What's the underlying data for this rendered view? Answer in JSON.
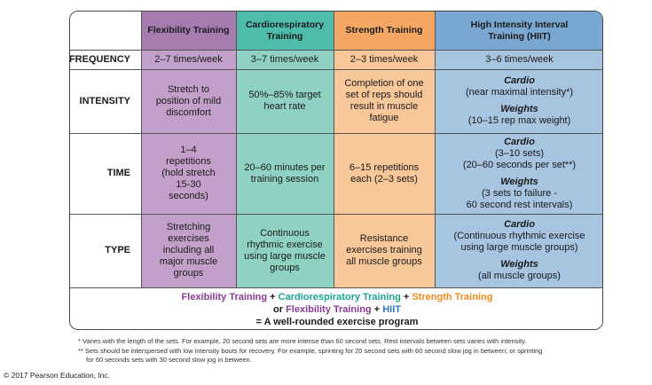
{
  "headers": [
    "Flexibility Training",
    "Cardiorespiratory Training",
    "Strength Training",
    "High Intensity Interval Training (HIIT)"
  ],
  "rows": {
    "frequency": {
      "label": "FREQUENCY",
      "flex": "2–7 times/week",
      "cardio": "3–7 times/week",
      "strength": "2–3 times/week",
      "hiit": "3–6 times/week"
    },
    "intensity": {
      "label": "INTENSITY",
      "flex": "Stretch to position of mild discomfort",
      "cardio": "50%–85% target heart rate",
      "strength": "Completion of one set of reps should result in muscle fatigue",
      "hiit_cardio_title": "Cardio",
      "hiit_cardio_text": "(near maximal intensity*)",
      "hiit_weights_title": "Weights",
      "hiit_weights_text": "(10–15 rep max weight)"
    },
    "time": {
      "label": "TIME",
      "flex": "1–4 repetitions (hold stretch 15-30 seconds)",
      "cardio": "20–60 minutes per training session",
      "strength": "6–15 repetitions each (2–3 sets)",
      "hiit_cardio_title": "Cardio",
      "hiit_cardio_line1": "(3–10 sets)",
      "hiit_cardio_line2": "(20–60 seconds per set**)",
      "hiit_weights_title": "Weights",
      "hiit_weights_line1": "(3 sets to failure -",
      "hiit_weights_line2": "60 second rest intervals)"
    },
    "type": {
      "label": "TYPE",
      "flex": "Stretching exercises including all major muscle groups",
      "cardio": "Continuous rhythmic exercise using large muscle groups",
      "strength": "Resistance exercises training all muscle groups",
      "hiit_cardio_title": "Cardio",
      "hiit_cardio_text": "(Continuous rhythmic exercise using large muscle groups)",
      "hiit_weights_title": "Weights",
      "hiit_weights_text": "(all muscle groups)"
    }
  },
  "summary": {
    "flex": "Flexibility Training",
    "plus1": " + ",
    "cardio": "Cardiorespiratory Training",
    "plus2": " + ",
    "strength": "Strength Training",
    "or_text": "or ",
    "flex2": "Flexibility Training",
    "plus3": " + ",
    "hiit": "HIIT",
    "result": "= A well-rounded exercise program"
  },
  "footnotes": {
    "note1": "* Varies with the length of the sets. For example, 20 second sets are more intense than 60 second sets. Rest intervals between sets varies with intensity.",
    "note2a": "** Sets should be interspersed with low intensity bouts for recovery. For example, sprinting for 20 second sets with 60 second slow jog in between; or sprinting",
    "note2b": "for 60 seconds sets with 30 second slow jog in between."
  },
  "copyright": "© 2017 Pearson Education, Inc.",
  "colors": {
    "flexibility": "#8b3a96",
    "cardio": "#1aa591",
    "strength": "#f08a1e",
    "hiit": "#2f78b8"
  }
}
